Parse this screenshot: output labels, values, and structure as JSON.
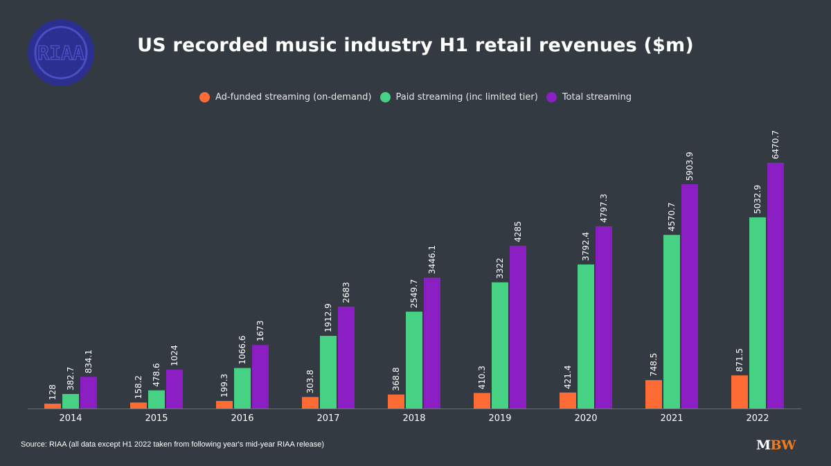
{
  "logo": {
    "text": "RIAA",
    "color": "#2b2f8f"
  },
  "chart_data": {
    "type": "bar",
    "title": "US recorded music industry H1 retail revenues ($m)",
    "categories": [
      "2014",
      "2015",
      "2016",
      "2017",
      "2018",
      "2019",
      "2020",
      "2021",
      "2022"
    ],
    "series": [
      {
        "name": "Ad-funded streaming (on-demand)",
        "color": "#ff6b35",
        "values": [
          128,
          158.2,
          199.3,
          303.8,
          368.8,
          410.3,
          421.4,
          748.5,
          871.5
        ]
      },
      {
        "name": "Paid streaming (inc limited tier)",
        "color": "#47d185",
        "values": [
          382.7,
          478.6,
          1066.6,
          1912.9,
          2549.7,
          3322,
          3792.4,
          4570.7,
          5032.9
        ]
      },
      {
        "name": "Total streaming",
        "color": "#8b1fc4",
        "values": [
          834.1,
          1024,
          1673,
          2683,
          3446.1,
          4285,
          4797.3,
          5903.9,
          6470.7
        ]
      }
    ],
    "legend": "top-center",
    "grid": false,
    "ylim": [
      0,
      7000
    ]
  },
  "footer": {
    "source": "Source: RIAA (all data except H1 2022 taken from following year's mid-year RIAA release)",
    "brand_m": "M",
    "brand_bw": "BW"
  }
}
